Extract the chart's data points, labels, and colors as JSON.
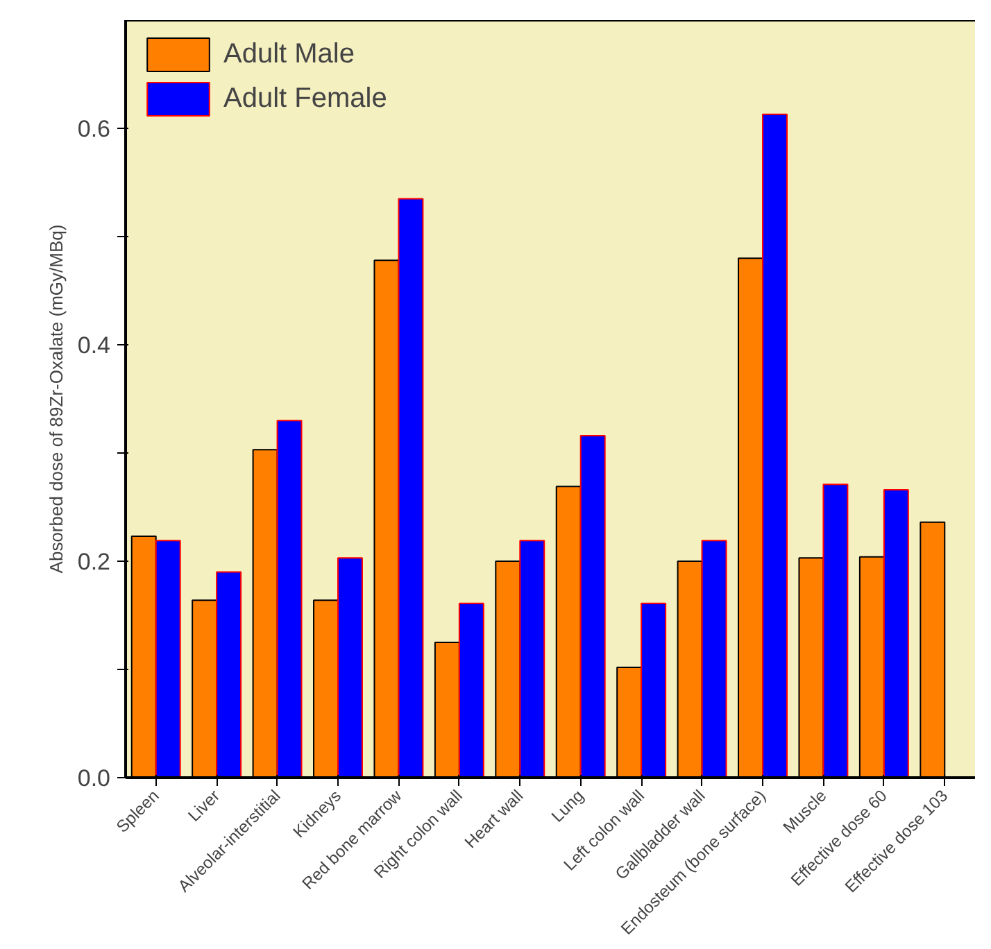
{
  "chart_data": {
    "type": "bar",
    "ylabel": "Absorbed dose of 89Zr-Oxalate (mGy/MBq)",
    "categories": [
      "Spleen",
      "Liver",
      "Alveolar-interstitial",
      "Kidneys",
      "Red bone marrow",
      "Right colon wall",
      "Heart wall",
      "Lung",
      "Left colon wall",
      "Gallbladder wall",
      "Endosteum (bone surface)",
      "Muscle",
      "Effective dose 60",
      "Effective dose 103"
    ],
    "series": [
      {
        "name": "Adult Male",
        "color": "#ff7f00",
        "values": [
          0.223,
          0.164,
          0.303,
          0.164,
          0.478,
          0.125,
          0.2,
          0.269,
          0.102,
          0.2,
          0.48,
          0.203,
          0.204,
          0.236
        ]
      },
      {
        "name": "Adult Female",
        "color": "#0000ff",
        "values": [
          0.219,
          0.19,
          0.33,
          0.203,
          0.535,
          0.161,
          0.219,
          0.316,
          0.161,
          0.219,
          0.613,
          0.271,
          0.266,
          null
        ]
      }
    ],
    "ylim": [
      0,
      0.7
    ],
    "yticks": [
      {
        "value": 0,
        "label": "0.0"
      },
      {
        "value": 0.1,
        "label": null
      },
      {
        "value": 0.2,
        "label": "0.2"
      },
      {
        "value": 0.3,
        "label": null
      },
      {
        "value": 0.4,
        "label": "0.4"
      },
      {
        "value": 0.5,
        "label": null
      },
      {
        "value": 0.6,
        "label": "0.6"
      }
    ],
    "grid": false,
    "legend": "top left"
  }
}
